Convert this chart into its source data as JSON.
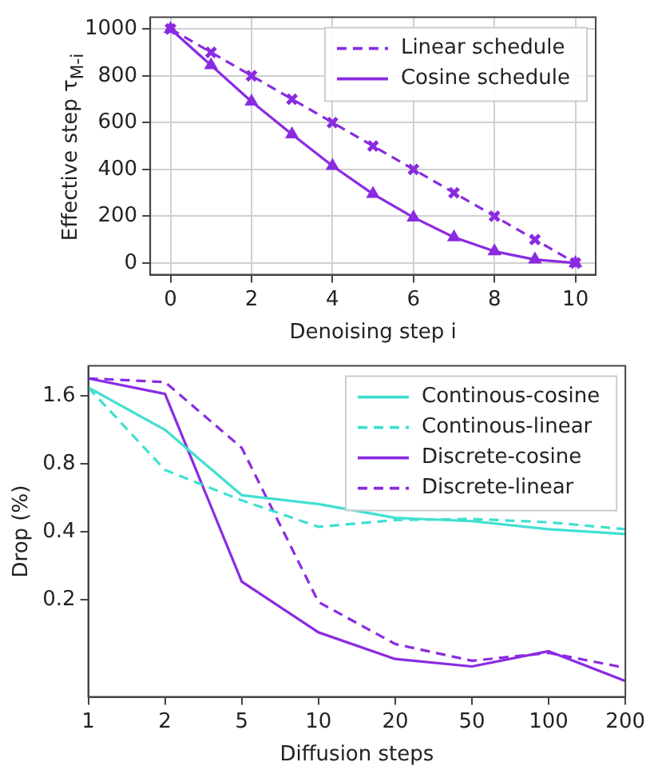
{
  "chart_data": [
    {
      "type": "line",
      "xlabel": "Denoising step i",
      "ylabel": "Effective step τ$_{M-i}$",
      "xlim": [
        -0.5,
        10.5
      ],
      "ylim": [
        -50,
        1050
      ],
      "xticks": [
        0,
        2,
        4,
        6,
        8,
        10
      ],
      "yticks": [
        0,
        200,
        400,
        600,
        800,
        1000
      ],
      "grid": true,
      "legend": "top right",
      "x": [
        0,
        1,
        2,
        3,
        4,
        5,
        6,
        7,
        8,
        9,
        10
      ],
      "series": [
        {
          "name": "Linear schedule",
          "color": "#8a2be2",
          "line_style": "dashed",
          "marker": "cross",
          "values": [
            1000,
            900,
            800,
            700,
            600,
            500,
            400,
            300,
            200,
            100,
            0
          ]
        },
        {
          "name": "Cosine schedule",
          "color": "#8a2be2",
          "line_style": "solid",
          "marker": "triangle",
          "values": [
            1000,
            845,
            690,
            550,
            415,
            295,
            195,
            110,
            50,
            15,
            0
          ]
        }
      ]
    },
    {
      "type": "line",
      "xlabel": "Diffusion steps",
      "ylabel": "Drop (%)",
      "log": "y",
      "ylim": [
        0.074,
        2.17
      ],
      "yticks": [
        0.2,
        0.4,
        0.8,
        1.6
      ],
      "grid": false,
      "legend": "top right",
      "marker": "none",
      "categories": [
        "1",
        "2",
        "5",
        "10",
        "20",
        "50",
        "100",
        "200"
      ],
      "series": [
        {
          "name": "Continous-cosine",
          "color": "#40e0d0",
          "line_style": "solid",
          "values": [
            1.74,
            1.13,
            0.58,
            0.53,
            0.46,
            0.445,
            0.41,
            0.39
          ]
        },
        {
          "name": "Continous-linear",
          "color": "#40e0d0",
          "line_style": "dashed",
          "values": [
            1.74,
            0.75,
            0.55,
            0.42,
            0.45,
            0.455,
            0.44,
            0.41
          ]
        },
        {
          "name": "Discrete-cosine",
          "color": "#8a2be2",
          "line_style": "solid",
          "values": [
            1.91,
            1.63,
            0.24,
            0.143,
            0.109,
            0.101,
            0.118,
            0.087
          ]
        },
        {
          "name": "Discrete-linear",
          "color": "#8a2be2",
          "line_style": "dashed",
          "values": [
            1.91,
            1.84,
            0.94,
            0.195,
            0.127,
            0.107,
            0.116,
            0.0996
          ]
        }
      ]
    }
  ]
}
